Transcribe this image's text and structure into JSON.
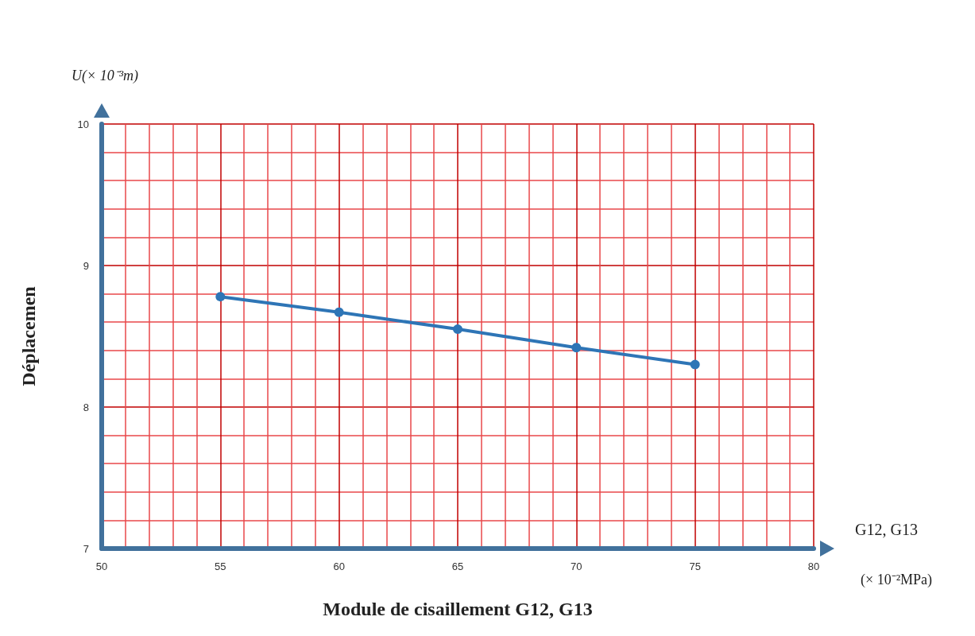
{
  "chart_data": {
    "type": "line",
    "xlabel": "Module de cisaillement G12, G13",
    "ylabel": "Déplacemen",
    "annotations": [
      "U(× 10⁻³m)",
      "(× 10⁻²MPa)",
      "G12, G13"
    ],
    "x": [
      55,
      60,
      65,
      70,
      75
    ],
    "series": [
      {
        "color": "#2e75b6",
        "values": [
          8.78,
          8.67,
          8.55,
          8.42,
          8.3
        ]
      }
    ],
    "xlim": [
      50,
      80
    ],
    "xticks": [
      50,
      {
        "value": 51,
        "label": null
      },
      {
        "value": 52,
        "label": null
      },
      {
        "value": 53,
        "label": null
      },
      {
        "value": 54,
        "label": null
      },
      55,
      {
        "value": 56,
        "label": null
      },
      {
        "value": 57,
        "label": null
      },
      {
        "value": 58,
        "label": null
      },
      {
        "value": 59,
        "label": null
      },
      60,
      {
        "value": 61,
        "label": null
      },
      {
        "value": 62,
        "label": null
      },
      {
        "value": 63,
        "label": null
      },
      {
        "value": 64,
        "label": null
      },
      65,
      {
        "value": 66,
        "label": null
      },
      {
        "value": 67,
        "label": null
      },
      {
        "value": 68,
        "label": null
      },
      {
        "value": 69,
        "label": null
      },
      70,
      {
        "value": 71,
        "label": null
      },
      {
        "value": 72,
        "label": null
      },
      {
        "value": 73,
        "label": null
      },
      {
        "value": 74,
        "label": null
      },
      75,
      {
        "value": 76,
        "label": null
      },
      {
        "value": 77,
        "label": null
      },
      {
        "value": 78,
        "label": null
      },
      {
        "value": 79,
        "label": null
      },
      80
    ],
    "ylim": [
      7,
      10
    ],
    "yticks": [
      7,
      {
        "value": 7.2,
        "label": null
      },
      {
        "value": 7.4,
        "label": null
      },
      {
        "value": 7.6,
        "label": null
      },
      {
        "value": 7.8,
        "label": null
      },
      8,
      {
        "value": 8.2,
        "label": null
      },
      {
        "value": 8.4,
        "label": null
      },
      {
        "value": 8.6,
        "label": null
      },
      {
        "value": 8.8,
        "label": null
      },
      9,
      {
        "value": 9.2,
        "label": null
      },
      {
        "value": 9.4,
        "label": null
      },
      {
        "value": 9.6,
        "label": null
      },
      {
        "value": 9.8,
        "label": null
      },
      10
    ],
    "grid": true,
    "marker": "circle",
    "line_style": "solid"
  }
}
